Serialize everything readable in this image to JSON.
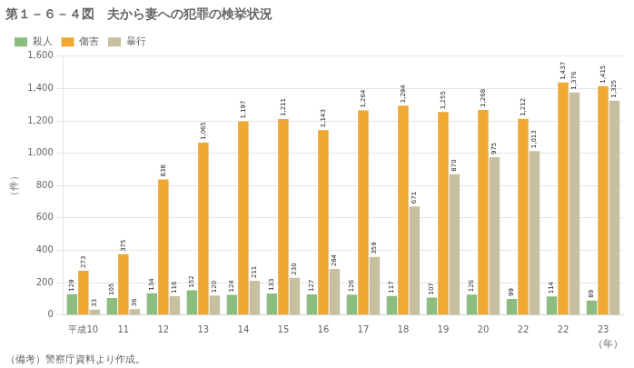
{
  "chart_data": {
    "type": "bar",
    "title": "第１－６－４図　夫から妻への犯罪の検挙状況",
    "footnote": "（備考）警察庁資料より作成。",
    "y_label": "（件）",
    "x_label": "（年）",
    "categories": [
      "平成10",
      "11",
      "12",
      "13",
      "14",
      "15",
      "16",
      "17",
      "18",
      "19",
      "20",
      "22",
      "22",
      "23"
    ],
    "series": [
      {
        "name": "殺人",
        "color": "#8cbd7f",
        "values": [
          129,
          105,
          134,
          152,
          124,
          133,
          127,
          126,
          117,
          107,
          126,
          99,
          114,
          89
        ],
        "value_labels": [
          "129",
          "105",
          "134",
          "152",
          "124",
          "133",
          "127",
          "126",
          "117",
          "107",
          "126",
          "99",
          "114",
          "89"
        ]
      },
      {
        "name": "傷害",
        "color": "#f0a830",
        "values": [
          273,
          375,
          838,
          1065,
          1197,
          1211,
          1143,
          1264,
          1294,
          1255,
          1268,
          1212,
          1437,
          1415
        ],
        "value_labels": [
          "273",
          "375",
          "838",
          "1,065",
          "1,197",
          "1,211",
          "1,143",
          "1,264",
          "1,294",
          "1,255",
          "1,268",
          "1,212",
          "1,437",
          "1,415"
        ]
      },
      {
        "name": "暴行",
        "color": "#c8bfa0",
        "values": [
          33,
          36,
          116,
          120,
          211,
          230,
          284,
          359,
          671,
          870,
          975,
          1013,
          1376,
          1325
        ],
        "value_labels": [
          "33",
          "36",
          "116",
          "120",
          "211",
          "230",
          "284",
          "359",
          "671",
          "870",
          "975",
          "1,013",
          "1,376",
          "1,325"
        ]
      }
    ],
    "ylim": [
      0,
      1600
    ],
    "yticks": [
      0,
      200,
      400,
      600,
      800,
      {
        "value": 1000,
        "label": "1,000"
      },
      {
        "value": 1200,
        "label": "1,200"
      },
      {
        "value": 1400,
        "label": "1,400"
      },
      {
        "value": 1600,
        "label": "1,600"
      }
    ],
    "grid": "y",
    "legend": "upper left",
    "data_labels": true
  }
}
